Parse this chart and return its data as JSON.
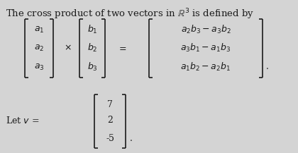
{
  "bg_color": "#d4d4d4",
  "text_color": "#1a1a1a",
  "title": "The cross product of two vectors in $\\mathbb{R}^3$ is defined by",
  "vec_a": [
    "$a_1$",
    "$a_2$",
    "$a_3$"
  ],
  "vec_b": [
    "$b_1$",
    "$b_2$",
    "$b_3$"
  ],
  "vec_result": [
    "$a_2b_3 - a_3b_2$",
    "$a_3b_1 - a_1b_3$",
    "$a_1b_2 - a_2b_1$"
  ],
  "let_v_vec": [
    "7",
    "2",
    "-5"
  ],
  "fontsize": 9
}
